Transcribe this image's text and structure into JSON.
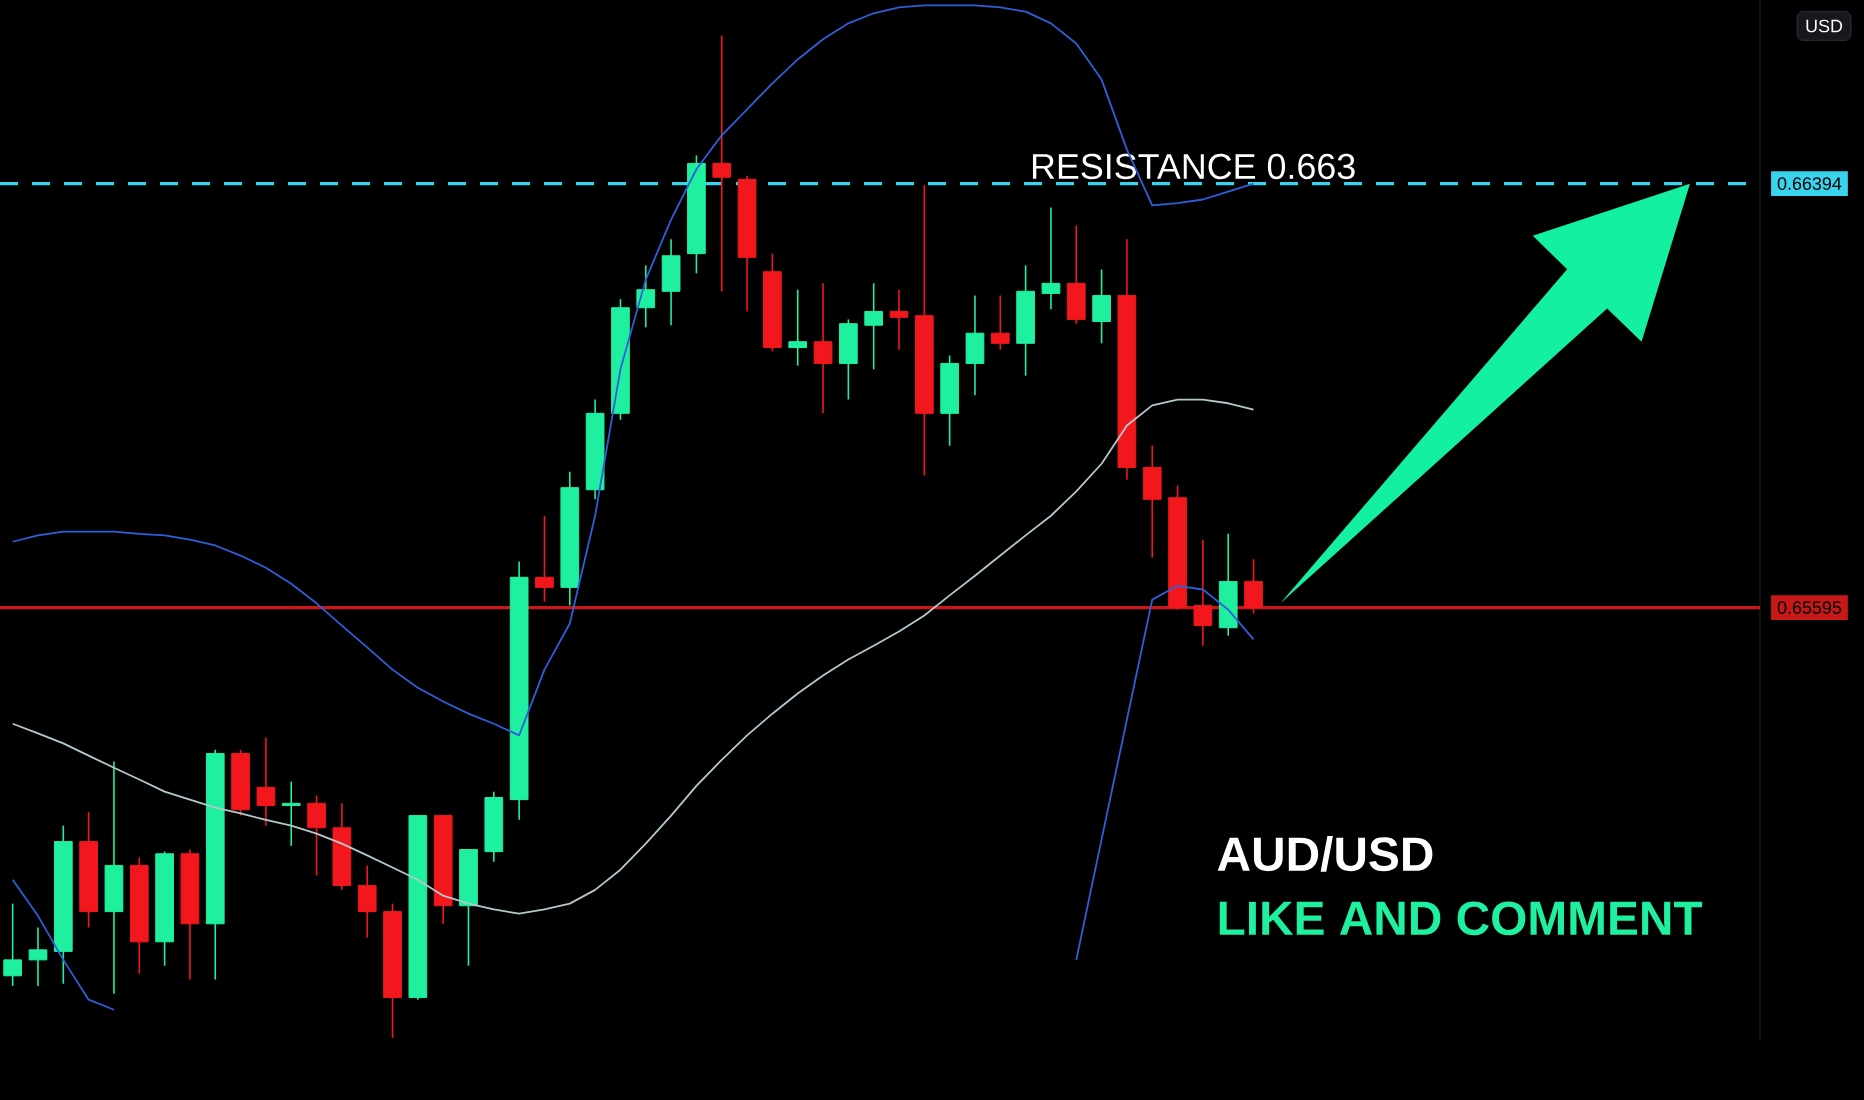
{
  "chart_data": {
    "type": "candlestick",
    "categories": [
      null,
      null,
      null,
      null,
      null,
      null,
      null,
      null,
      null,
      null,
      null,
      null,
      null,
      null,
      null,
      null,
      null,
      null,
      null,
      null,
      null,
      null,
      null,
      null,
      null,
      null,
      null,
      null,
      null,
      null,
      null,
      null,
      null,
      null,
      null,
      null,
      null,
      null,
      null,
      null,
      null,
      null,
      null,
      null,
      null,
      null,
      null,
      null,
      null,
      null
    ],
    "ohlc": [
      [
        0.64901,
        0.65037,
        0.64882,
        0.64931
      ],
      [
        0.64931,
        0.64992,
        0.64882,
        0.6495
      ],
      [
        0.64947,
        0.65184,
        0.64886,
        0.65154
      ],
      [
        0.65154,
        0.6521,
        0.64992,
        0.65022
      ],
      [
        0.65022,
        0.65305,
        0.64867,
        0.65109
      ],
      [
        0.65109,
        0.65124,
        0.64905,
        0.64965
      ],
      [
        0.64965,
        0.65135,
        0.6492,
        0.65131
      ],
      [
        0.65131,
        0.65139,
        0.64894,
        0.64999
      ],
      [
        0.64999,
        0.65327,
        0.64894,
        0.6532
      ],
      [
        0.6532,
        0.65327,
        0.65203,
        0.65214
      ],
      [
        0.65256,
        0.6535,
        0.65184,
        0.65222
      ],
      [
        0.65222,
        0.65267,
        0.65146,
        0.65226
      ],
      [
        0.65226,
        0.65241,
        0.6509,
        0.6518
      ],
      [
        0.6518,
        0.65226,
        0.65063,
        0.65071
      ],
      [
        0.65071,
        0.65109,
        0.64973,
        0.65022
      ],
      [
        0.65022,
        0.65037,
        0.64784,
        0.6486
      ],
      [
        0.6486,
        0.65203,
        0.64856,
        0.65203
      ],
      [
        0.65203,
        0.65203,
        0.64999,
        0.65033
      ],
      [
        0.65033,
        0.65139,
        0.6492,
        0.65139
      ],
      [
        0.65135,
        0.65248,
        0.65116,
        0.65237
      ],
      [
        0.65233,
        0.65682,
        0.65195,
        0.65652
      ],
      [
        0.65652,
        0.65768,
        0.65606,
        0.65633
      ],
      [
        0.65633,
        0.65851,
        0.65599,
        0.65821
      ],
      [
        0.65817,
        0.65987,
        0.65799,
        0.65961
      ],
      [
        0.65961,
        0.66176,
        0.65949,
        0.6616
      ],
      [
        0.6616,
        0.6624,
        0.66123,
        0.66194
      ],
      [
        0.66191,
        0.66289,
        0.66127,
        0.66258
      ],
      [
        0.66262,
        0.66447,
        0.66225,
        0.66432
      ],
      [
        0.66432,
        0.66673,
        0.66191,
        0.66406
      ],
      [
        0.66402,
        0.66409,
        0.66153,
        0.66255
      ],
      [
        0.66228,
        0.66262,
        0.66078,
        0.66085
      ],
      [
        0.66085,
        0.66194,
        0.66051,
        0.66096
      ],
      [
        0.66096,
        0.66206,
        0.65961,
        0.66055
      ],
      [
        0.66055,
        0.66138,
        0.65987,
        0.6613
      ],
      [
        0.66127,
        0.66206,
        0.66044,
        0.66153
      ],
      [
        0.66153,
        0.66194,
        0.66081,
        0.66142
      ],
      [
        0.66145,
        0.66391,
        0.65844,
        0.65961
      ],
      [
        0.65961,
        0.6607,
        0.659,
        0.66055
      ],
      [
        0.66055,
        0.66183,
        0.65995,
        0.66112
      ],
      [
        0.66112,
        0.66183,
        0.66081,
        0.66093
      ],
      [
        0.66093,
        0.6624,
        0.66032,
        0.66191
      ],
      [
        0.66187,
        0.66349,
        0.66157,
        0.66206
      ],
      [
        0.66206,
        0.66315,
        0.6613,
        0.66138
      ],
      [
        0.66134,
        0.66232,
        0.66093,
        0.66183
      ],
      [
        0.66183,
        0.66289,
        0.65836,
        0.65859
      ],
      [
        0.65859,
        0.659,
        0.65689,
        0.65799
      ],
      [
        0.65802,
        0.65825,
        0.65591,
        0.65595
      ],
      [
        0.65599,
        0.65723,
        0.65523,
        0.65561
      ],
      [
        0.65557,
        0.65734,
        0.65542,
        0.65644
      ],
      [
        0.65644,
        0.65686,
        0.65584,
        0.65595
      ]
    ],
    "colors": [
      "#1ff0a0",
      "#1ff0a0",
      "#1ff0a0",
      "#f2171c",
      "#1ff0a0",
      "#f2171c",
      "#1ff0a0",
      "#f2171c",
      "#1ff0a0",
      "#f2171c",
      "#f2171c",
      "#1ff0a0",
      "#f2171c",
      "#f2171c",
      "#f2171c",
      "#f2171c",
      "#1ff0a0",
      "#f2171c",
      "#1ff0a0",
      "#1ff0a0",
      "#1ff0a0",
      "#f2171c",
      "#1ff0a0",
      "#1ff0a0",
      "#1ff0a0",
      "#1ff0a0",
      "#1ff0a0",
      "#1ff0a0",
      "#f2171c",
      "#f2171c",
      "#f2171c",
      "#1ff0a0",
      "#f2171c",
      "#1ff0a0",
      "#1ff0a0",
      "#f2171c",
      "#f2171c",
      "#1ff0a0",
      "#1ff0a0",
      "#f2171c",
      "#1ff0a0",
      "#1ff0a0",
      "#f2171c",
      "#1ff0a0",
      "#f2171c",
      "#f2171c",
      "#f2171c",
      "#f2171c",
      "#1ff0a0",
      "#f2171c"
    ],
    "series": [
      {
        "type": "line",
        "color": "#2f5fd8",
        "values": [
          0.65719,
          0.65731,
          0.65738,
          0.65738,
          0.65738,
          0.65734,
          0.65731,
          0.65723,
          0.65712,
          0.65693,
          0.6567,
          0.6564,
          0.65603,
          0.65561,
          0.6552,
          0.65478,
          0.65444,
          0.65418,
          0.65395,
          0.65376,
          0.65354,
          0.65478,
          0.65565,
          0.65768,
          0.66044,
          0.66213,
          0.66326,
          0.66421,
          0.66485,
          0.66534,
          0.66583,
          0.66628,
          0.66666,
          0.66696,
          0.66715,
          0.66726,
          0.6673,
          0.6673,
          0.6673,
          0.66726,
          0.66718,
          0.66696,
          0.66658,
          0.6659,
          0.66458,
          0.66353,
          0.66357,
          0.66364,
          0.66379,
          0.66394
        ]
      },
      {
        "type": "line",
        "color": "#b4c8cc",
        "values": [
          0.65376,
          0.65358,
          0.65339,
          0.65316,
          0.65293,
          0.65271,
          0.65248,
          0.65233,
          0.65218,
          0.65207,
          0.65195,
          0.65184,
          0.65169,
          0.6515,
          0.65128,
          0.65105,
          0.65082,
          0.65052,
          0.65037,
          0.65026,
          0.65018,
          0.65026,
          0.65037,
          0.65063,
          0.65101,
          0.6515,
          0.65203,
          0.65259,
          0.65308,
          0.65354,
          0.65395,
          0.65433,
          0.65467,
          0.65497,
          0.65523,
          0.6555,
          0.6558,
          0.65618,
          0.65655,
          0.65693,
          0.65731,
          0.65768,
          0.65814,
          0.65866,
          0.65938,
          0.65976,
          0.65987,
          0.65987,
          0.6598,
          0.65968
        ]
      },
      {
        "type": "line",
        "color": "#2f5fd8",
        "values": [
          0.65082,
          0.65014,
          0.64931,
          0.64856,
          0.64837,
          null,
          null,
          null,
          null,
          null,
          null,
          null,
          null,
          null,
          null,
          null,
          null,
          null,
          null,
          null,
          null,
          null,
          null,
          null,
          null,
          null,
          null,
          null,
          null,
          null,
          null,
          null,
          null,
          null,
          null,
          null,
          null,
          null,
          null,
          null,
          null,
          null,
          0.64931,
          0.65158,
          0.65384,
          0.6561,
          0.65636,
          0.65629,
          0.65591,
          0.65535
        ]
      }
    ],
    "ylim": [
      0.6478,
      0.6674
    ],
    "yticks": [
      0.66394,
      0.65595
    ],
    "tick_labels": "y",
    "ref_lines": [
      {
        "axis": "y",
        "value": 0.66394,
        "label": "RESISTANCE  0.663",
        "color": "#3ad3ee",
        "line_style": "dashed"
      },
      {
        "axis": "y",
        "value": 0.65595,
        "color": "#c81818",
        "line_style": "solid"
      }
    ],
    "annotations": [
      "AUD/USD",
      "LIKE AND COMMENT",
      "USD"
    ]
  }
}
